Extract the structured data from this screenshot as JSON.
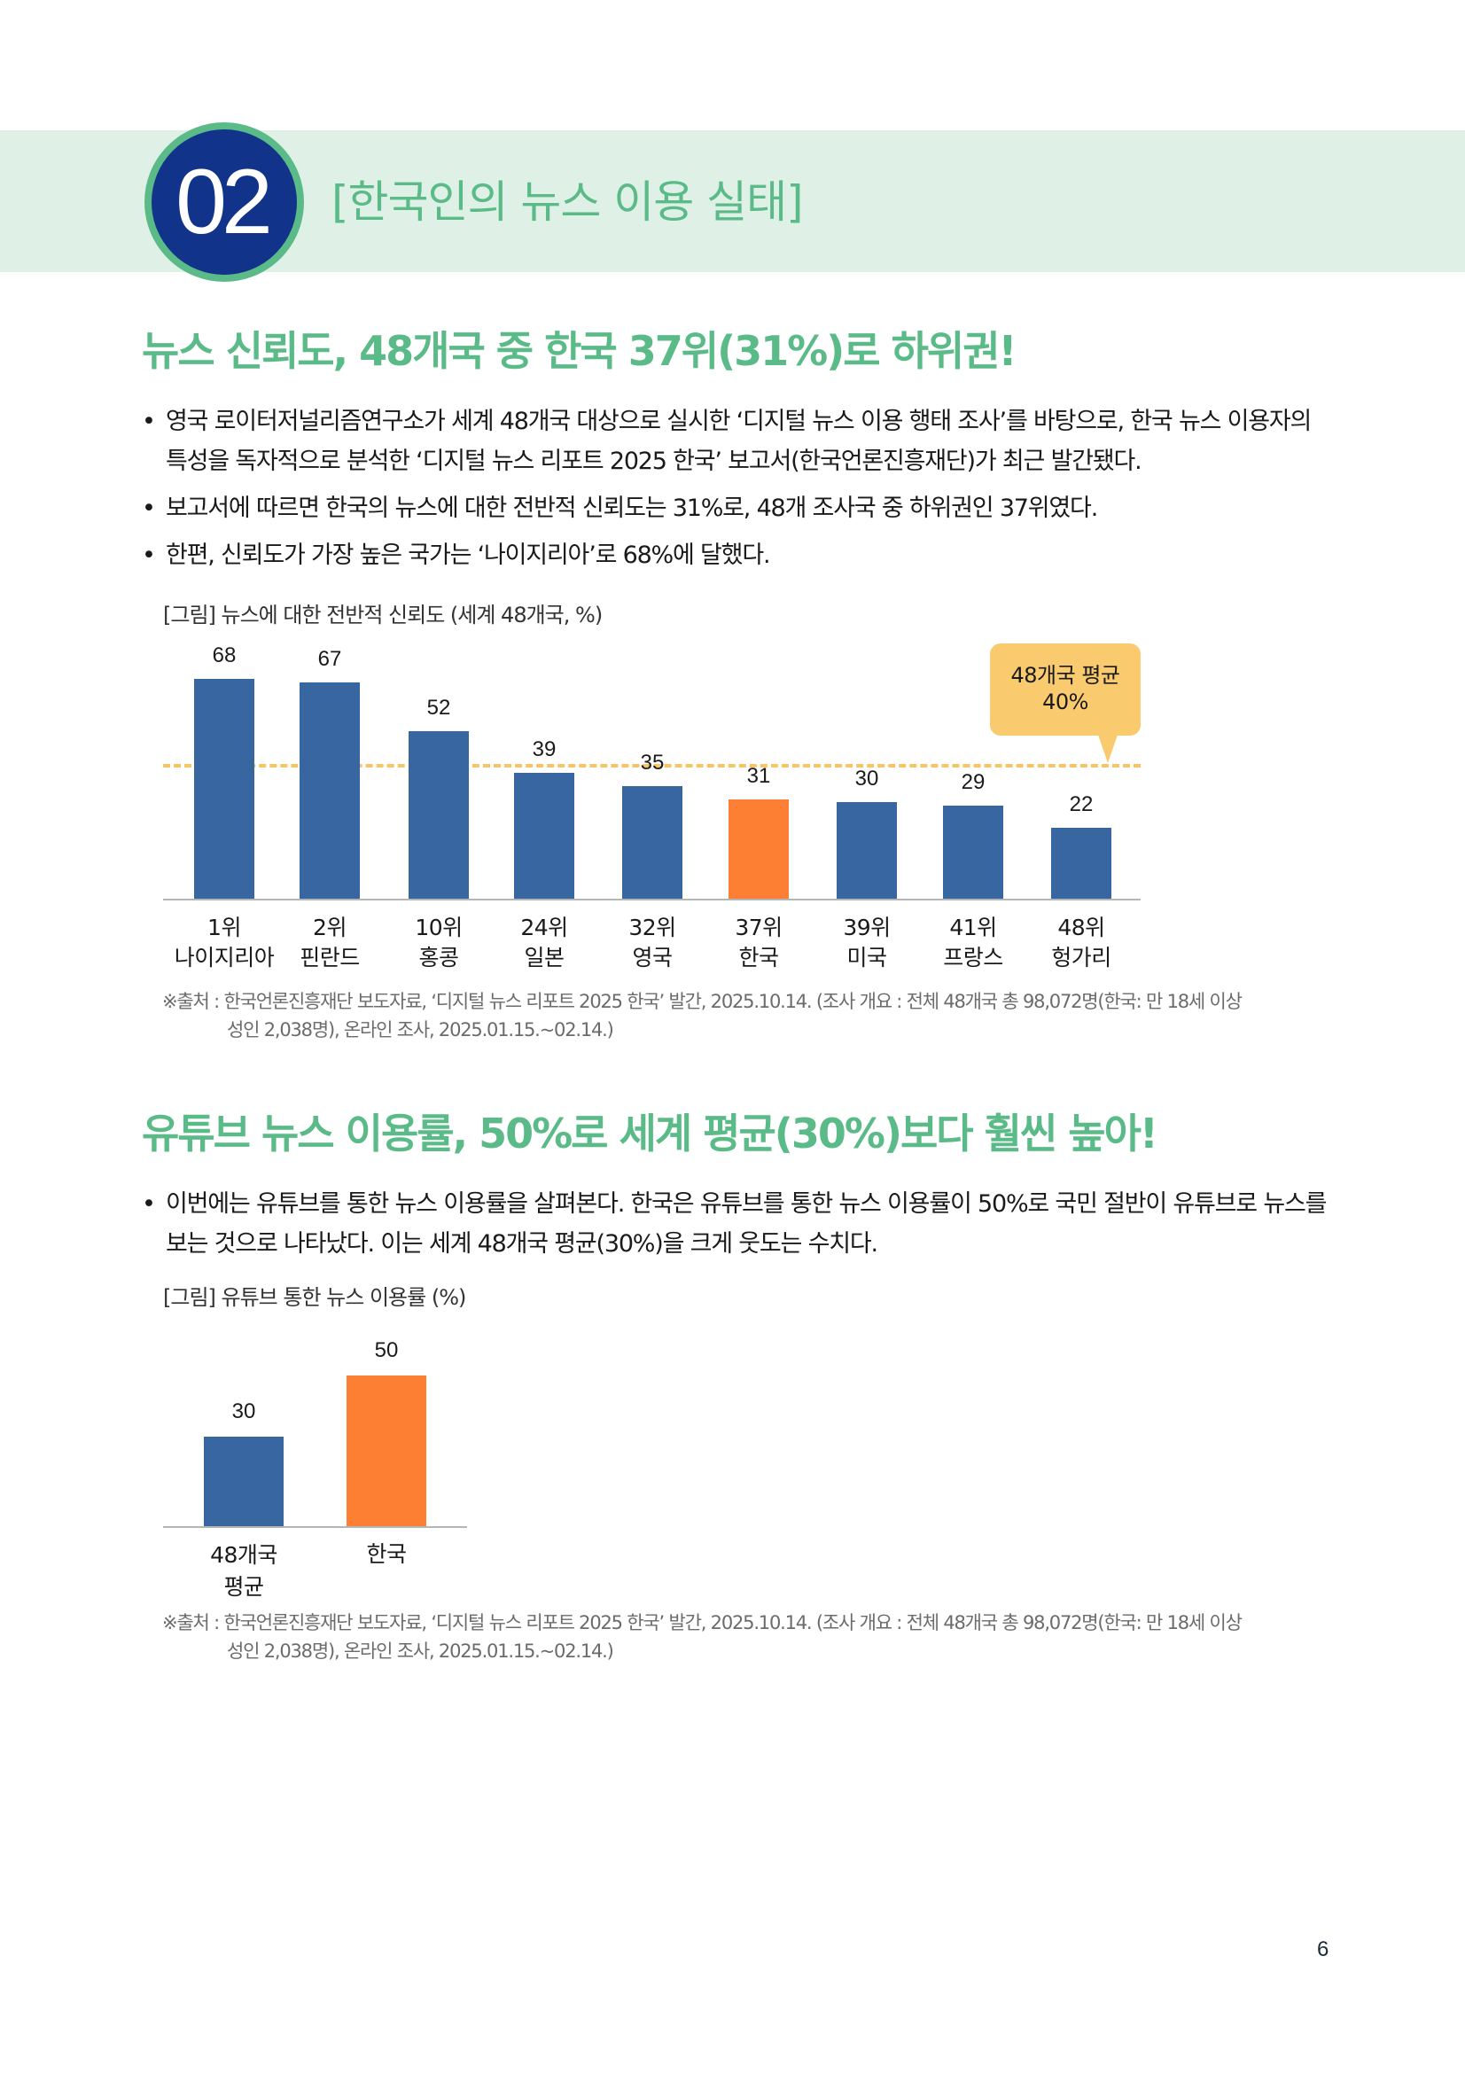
{
  "header": {
    "section_number": "02",
    "title": "[한국인의 뉴스 이용 실태]",
    "colors": {
      "band": "#dff0e6",
      "badge_fill": "#12338a",
      "badge_ring": "#5bbb88",
      "title": "#5bbb88"
    }
  },
  "section1": {
    "headline": "뉴스 신뢰도, 48개국 중 한국 37위(31%)로 하위권!",
    "bullets": [
      {
        "text": "영국 로이터저널리즘연구소가 세계 48개국 대상으로 실시한 ‘디지털 뉴스 이용 행태 조사’를 바탕으로, 한국 뉴스 이용자의 특성을 독자적으로 분석한 ‘디지털 뉴스 리포트 2025 한국’ 보고서(한국언론진흥재단)가 최근 발간됐다."
      },
      {
        "text": "보고서에 따르면 한국의 뉴스에 대한 전반적 신뢰도는 31%로, 48개 조사국 중 하위권인 37위였다."
      },
      {
        "text": "한편, 신뢰도가 가장 높은 국가는 ‘나이지리아’로 68%에 달했다."
      }
    ],
    "figure_caption": "[그림] 뉴스에 대한 전반적 신뢰도 (세계 48개국, %)",
    "average_bubble": {
      "line1": "48개국 평균",
      "line2": "40%"
    },
    "source": {
      "line1": "※출처 : 한국언론진흥재단 보도자료, ‘디지털 뉴스 리포트 2025 한국’ 발간, 2025.10.14. (조사 개요 : 전체 48개국 총 98,072명(한국: 만 18세 이상",
      "line2": "성인 2,038명), 온라인 조사, 2025.01.15.~02.14.)"
    }
  },
  "section2": {
    "headline": "유튜브 뉴스 이용률, 50%로 세계 평균(30%)보다 훨씬 높아!",
    "bullets": [
      {
        "text": "이번에는 유튜브를 통한 뉴스 이용률을 살펴본다. 한국은 유튜브를 통한 뉴스 이용률이 50%로 국민 절반이 유튜브로 뉴스를 보는 것으로 나타났다. 이는 세계 48개국 평균(30%)을 크게 웃도는 수치다."
      }
    ],
    "figure_caption": "[그림] 유튜브 통한 뉴스 이용률 (%)",
    "source": {
      "line1": "※출처 : 한국언론진흥재단 보도자료, ‘디지털 뉴스 리포트 2025 한국’ 발간, 2025.10.14. (조사 개요 : 전체 48개국 총 98,072명(한국: 만 18세 이상",
      "line2": "성인 2,038명), 온라인 조사, 2025.01.15.~02.14.)"
    }
  },
  "page_number": "6",
  "chart_data": [
    {
      "type": "bar",
      "title": "[그림] 뉴스에 대한 전반적 신뢰도 (세계 48개국, %)",
      "xlabel": "",
      "ylabel": "",
      "categories": [
        "1위 나이지리아",
        "2위 핀란드",
        "10위 홍콩",
        "24위 일본",
        "32위 영국",
        "37위 한국",
        "39위 미국",
        "41위 프랑스",
        "48위 헝가리"
      ],
      "ranks": [
        "1위",
        "2위",
        "10위",
        "24위",
        "32위",
        "37위",
        "39위",
        "41위",
        "48위"
      ],
      "countries": [
        "나이지리아",
        "핀란드",
        "홍콩",
        "일본",
        "영국",
        "한국",
        "미국",
        "프랑스",
        "헝가리"
      ],
      "values": [
        68,
        67,
        52,
        39,
        35,
        31,
        30,
        29,
        22
      ],
      "highlight_index": 5,
      "colors": {
        "default": "#3866a1",
        "highlight": "#fd7f33",
        "average_line": "#f7c46a",
        "bubble": "#f9ca6e"
      },
      "reference_line": {
        "label": "48개국 평균 40%",
        "value": 40,
        "style": "dashed"
      },
      "grid": false,
      "ylim": [
        0,
        70
      ]
    },
    {
      "type": "bar",
      "title": "[그림] 유튜브 통한 뉴스 이용률 (%)",
      "xlabel": "",
      "ylabel": "",
      "categories": [
        "48개국 평균",
        "한국"
      ],
      "values": [
        30,
        50
      ],
      "highlight_index": 1,
      "colors": {
        "default": "#3866a1",
        "highlight": "#fd7f33"
      },
      "grid": false,
      "ylim": [
        0,
        55
      ]
    }
  ]
}
